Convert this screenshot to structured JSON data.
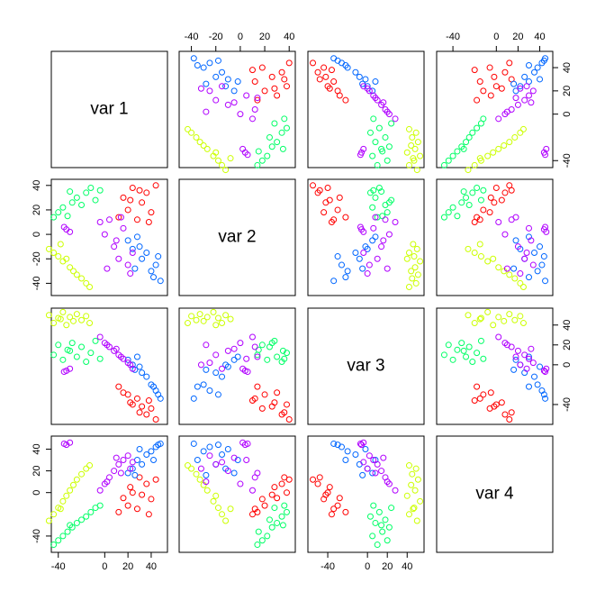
{
  "chart_data": {
    "type": "scatter-matrix",
    "variables": [
      "var 1",
      "var 2",
      "var 3",
      "var 4"
    ],
    "lims": [
      [
        -46,
        54
      ],
      [
        -50,
        45
      ],
      [
        -60,
        57
      ],
      [
        -55,
        52
      ]
    ],
    "ticks": [
      [
        -40,
        0,
        20,
        40
      ],
      [
        -40,
        -20,
        0,
        20,
        40
      ],
      [
        -40,
        0,
        20,
        40
      ],
      [
        -40,
        0,
        20,
        40
      ]
    ],
    "series": [
      {
        "color": "#ccff00",
        "values": [
          [
            -48,
            -12,
            50,
            -26
          ],
          [
            -44,
            -15,
            42,
            -20
          ],
          [
            -40,
            -18,
            47,
            -14
          ],
          [
            -36,
            -22,
            53,
            -8
          ],
          [
            -33,
            -20,
            40,
            -3
          ],
          [
            -30,
            -27,
            48,
            2
          ],
          [
            -27,
            -30,
            44,
            7
          ],
          [
            -24,
            -33,
            51,
            12
          ],
          [
            -20,
            -36,
            45,
            17
          ],
          [
            -16,
            -40,
            49,
            22
          ],
          [
            -13,
            -43,
            42,
            25
          ],
          [
            -38,
            -8,
            46,
            -15
          ]
        ]
      },
      {
        "color": "#00ff66",
        "values": [
          [
            -44,
            14,
            10,
            -48
          ],
          [
            -40,
            18,
            20,
            -44
          ],
          [
            -36,
            22,
            5,
            -40
          ],
          [
            -32,
            15,
            15,
            -36
          ],
          [
            -28,
            26,
            22,
            -32
          ],
          [
            -24,
            30,
            8,
            -28
          ],
          [
            -20,
            24,
            18,
            -25
          ],
          [
            -16,
            34,
            3,
            -22
          ],
          [
            -12,
            38,
            12,
            -18
          ],
          [
            -8,
            28,
            24,
            -14
          ],
          [
            -4,
            36,
            6,
            -12
          ],
          [
            -30,
            35,
            14,
            -30
          ]
        ]
      },
      {
        "color": "#ff0000",
        "values": [
          [
            12,
            14,
            -22,
            -18
          ],
          [
            16,
            30,
            -28,
            -5
          ],
          [
            20,
            20,
            -30,
            -12
          ],
          [
            24,
            38,
            -40,
            0
          ],
          [
            28,
            12,
            -34,
            -15
          ],
          [
            32,
            26,
            -42,
            -2
          ],
          [
            36,
            34,
            -50,
            8
          ],
          [
            40,
            18,
            -44,
            -6
          ],
          [
            44,
            40,
            -55,
            12
          ],
          [
            22,
            28,
            -38,
            5
          ],
          [
            30,
            36,
            -48,
            14
          ],
          [
            38,
            10,
            -36,
            -20
          ]
        ]
      },
      {
        "color": "#0066ff",
        "values": [
          [
            20,
            -5,
            5,
            18
          ],
          [
            24,
            -12,
            0,
            22
          ],
          [
            28,
            -2,
            8,
            30
          ],
          [
            32,
            -20,
            -8,
            26
          ],
          [
            36,
            -15,
            -12,
            35
          ],
          [
            40,
            -30,
            -20,
            38
          ],
          [
            44,
            -25,
            -26,
            42
          ],
          [
            48,
            -38,
            -34,
            45
          ],
          [
            30,
            -10,
            -2,
            40
          ],
          [
            42,
            -35,
            -22,
            30
          ],
          [
            26,
            -28,
            -5,
            16
          ],
          [
            46,
            -18,
            -30,
            44
          ]
        ]
      },
      {
        "color": "#b000ff",
        "values": [
          [
            -4,
            10,
            28,
            2
          ],
          [
            0,
            0,
            22,
            8
          ],
          [
            4,
            12,
            18,
            14
          ],
          [
            8,
            -10,
            14,
            20
          ],
          [
            12,
            -20,
            10,
            26
          ],
          [
            16,
            5,
            6,
            30
          ],
          [
            20,
            -25,
            2,
            34
          ],
          [
            24,
            -15,
            -4,
            28
          ],
          [
            2,
            -28,
            20,
            10
          ],
          [
            14,
            14,
            8,
            18
          ],
          [
            10,
            -5,
            16,
            32
          ],
          [
            22,
            -32,
            0,
            22
          ],
          [
            -33,
            4,
            -6,
            44
          ],
          [
            -30,
            2,
            -4,
            46
          ],
          [
            -35,
            6,
            -7,
            45
          ]
        ]
      }
    ]
  }
}
